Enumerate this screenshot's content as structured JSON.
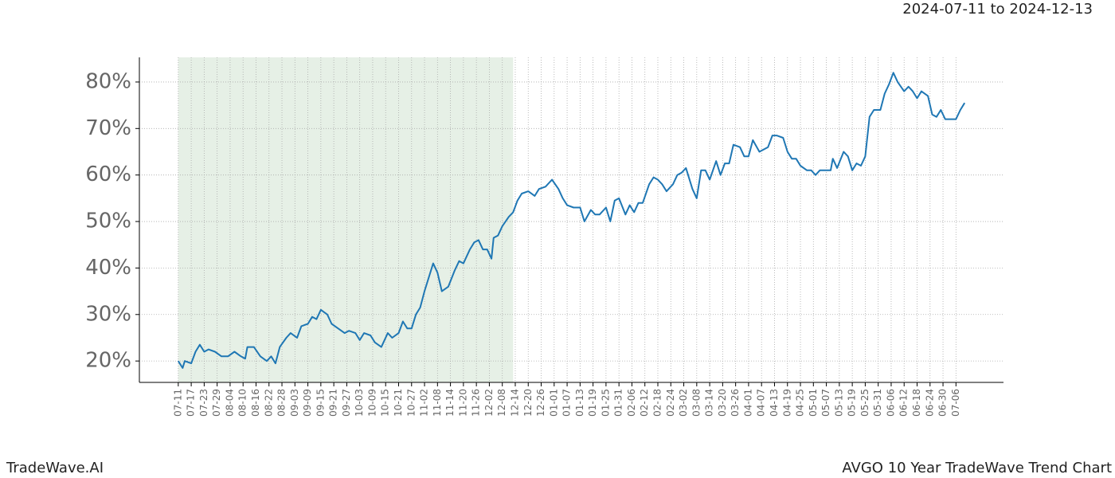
{
  "chart_data": {
    "type": "line",
    "header": "2024-07-11 to 2024-12-13",
    "footer_left": "TradeWave.AI",
    "footer_right": "AVGO 10 Year TradeWave Trend Chart",
    "highlight_x": [
      0,
      155
    ],
    "highlight_color": "#e6f0e6",
    "grid": true,
    "xlim": [
      -18,
      382
    ],
    "ylim": [
      15.4,
      85.3
    ],
    "yticks": [
      {
        "value": 20,
        "label": "20%"
      },
      {
        "value": 30,
        "label": "30%"
      },
      {
        "value": 40,
        "label": "40%"
      },
      {
        "value": 50,
        "label": "50%"
      },
      {
        "value": 60,
        "label": "60%"
      },
      {
        "value": 70,
        "label": "70%"
      },
      {
        "value": 80,
        "label": "80%"
      }
    ],
    "xticks": [
      {
        "value": 0,
        "label": "07-11"
      },
      {
        "value": 6,
        "label": "07-17"
      },
      {
        "value": 12,
        "label": "07-23"
      },
      {
        "value": 18,
        "label": "07-29"
      },
      {
        "value": 24,
        "label": "08-04"
      },
      {
        "value": 30,
        "label": "08-10"
      },
      {
        "value": 36,
        "label": "08-16"
      },
      {
        "value": 42,
        "label": "08-22"
      },
      {
        "value": 48,
        "label": "08-28"
      },
      {
        "value": 54,
        "label": "09-03"
      },
      {
        "value": 60,
        "label": "09-09"
      },
      {
        "value": 66,
        "label": "09-15"
      },
      {
        "value": 72,
        "label": "09-21"
      },
      {
        "value": 78,
        "label": "09-27"
      },
      {
        "value": 84,
        "label": "10-03"
      },
      {
        "value": 90,
        "label": "10-09"
      },
      {
        "value": 96,
        "label": "10-15"
      },
      {
        "value": 102,
        "label": "10-21"
      },
      {
        "value": 108,
        "label": "10-27"
      },
      {
        "value": 114,
        "label": "11-02"
      },
      {
        "value": 120,
        "label": "11-08"
      },
      {
        "value": 126,
        "label": "11-14"
      },
      {
        "value": 132,
        "label": "11-20"
      },
      {
        "value": 138,
        "label": "11-26"
      },
      {
        "value": 144,
        "label": "12-02"
      },
      {
        "value": 150,
        "label": "12-08"
      },
      {
        "value": 156,
        "label": "12-14"
      },
      {
        "value": 162,
        "label": "12-20"
      },
      {
        "value": 168,
        "label": "12-26"
      },
      {
        "value": 174,
        "label": "01-01"
      },
      {
        "value": 180,
        "label": "01-07"
      },
      {
        "value": 186,
        "label": "01-13"
      },
      {
        "value": 192,
        "label": "01-19"
      },
      {
        "value": 198,
        "label": "01-25"
      },
      {
        "value": 204,
        "label": "01-31"
      },
      {
        "value": 210,
        "label": "02-06"
      },
      {
        "value": 216,
        "label": "02-12"
      },
      {
        "value": 222,
        "label": "02-18"
      },
      {
        "value": 228,
        "label": "02-24"
      },
      {
        "value": 234,
        "label": "03-02"
      },
      {
        "value": 240,
        "label": "03-08"
      },
      {
        "value": 246,
        "label": "03-14"
      },
      {
        "value": 252,
        "label": "03-20"
      },
      {
        "value": 258,
        "label": "03-26"
      },
      {
        "value": 264,
        "label": "04-01"
      },
      {
        "value": 270,
        "label": "04-07"
      },
      {
        "value": 276,
        "label": "04-13"
      },
      {
        "value": 282,
        "label": "04-19"
      },
      {
        "value": 288,
        "label": "04-25"
      },
      {
        "value": 294,
        "label": "05-01"
      },
      {
        "value": 300,
        "label": "05-07"
      },
      {
        "value": 306,
        "label": "05-13"
      },
      {
        "value": 312,
        "label": "05-19"
      },
      {
        "value": 318,
        "label": "05-25"
      },
      {
        "value": 324,
        "label": "05-31"
      },
      {
        "value": 330,
        "label": "06-06"
      },
      {
        "value": 336,
        "label": "06-12"
      },
      {
        "value": 342,
        "label": "06-18"
      },
      {
        "value": 348,
        "label": "06-24"
      },
      {
        "value": 354,
        "label": "06-30"
      },
      {
        "value": 360,
        "label": "07-06"
      }
    ],
    "x": [
      0,
      2,
      3,
      6,
      8,
      10,
      12,
      14,
      17,
      20,
      23,
      26,
      29,
      31,
      32,
      35,
      38,
      41,
      43,
      45,
      47,
      50,
      52,
      55,
      57,
      60,
      62,
      64,
      66,
      69,
      71,
      74,
      77,
      79,
      82,
      84,
      86,
      89,
      91,
      94,
      97,
      99,
      102,
      104,
      106,
      108,
      110,
      112,
      114,
      118,
      120,
      122,
      125,
      128,
      130,
      132,
      135,
      137,
      139,
      141,
      143,
      145,
      146,
      148,
      150,
      153,
      155,
      157,
      159,
      162,
      165,
      167,
      170,
      173,
      176,
      178,
      180,
      183,
      186,
      188,
      191,
      193,
      195,
      198,
      200,
      202,
      204,
      207,
      209,
      211,
      213,
      215,
      218,
      220,
      222,
      224,
      226,
      229,
      231,
      233,
      235,
      238,
      240,
      242,
      244,
      246,
      249,
      251,
      253,
      255,
      257,
      260,
      262,
      264,
      266,
      269,
      271,
      273,
      275,
      277,
      280,
      282,
      284,
      286,
      288,
      291,
      293,
      295,
      297,
      300,
      302,
      303,
      305,
      308,
      310,
      312,
      314,
      316,
      318,
      320,
      322,
      325,
      327,
      329,
      331,
      333,
      336,
      338,
      340,
      342,
      344,
      347,
      349,
      351,
      353,
      355,
      357,
      360,
      362,
      364
    ],
    "series": [
      {
        "color": "#1f77b4",
        "values": [
          20,
          18.5,
          20,
          19.5,
          22,
          23.5,
          22,
          22.5,
          22,
          21,
          21,
          22,
          21,
          20.5,
          23,
          23,
          21,
          20,
          21,
          19.5,
          23,
          25,
          26,
          25,
          27.5,
          28,
          29.5,
          29,
          31,
          30,
          28,
          27,
          26,
          26.5,
          26,
          24.5,
          26,
          25.5,
          24,
          23,
          26,
          25,
          26,
          28.5,
          27,
          27,
          30,
          31.5,
          35,
          41,
          39,
          35,
          36,
          39.5,
          41.5,
          41,
          44,
          45.5,
          46,
          44,
          44,
          42,
          46.5,
          47,
          49,
          51,
          52,
          54.5,
          56,
          56.5,
          55.5,
          57,
          57.5,
          59,
          57,
          55,
          53.5,
          53,
          53,
          50,
          52.5,
          51.5,
          51.5,
          53,
          50,
          54.5,
          55,
          51.5,
          53.5,
          52,
          54,
          54,
          58,
          59.5,
          59,
          58,
          56.5,
          58,
          60,
          60.5,
          61.5,
          57,
          55,
          61,
          61,
          59,
          63,
          60,
          62.5,
          62.5,
          66.5,
          66,
          64,
          64,
          67.5,
          65,
          65.5,
          66,
          68.5,
          68.5,
          68,
          65,
          63.5,
          63.5,
          62,
          61,
          61,
          60,
          61,
          61,
          61,
          63.5,
          61.5,
          65,
          64,
          61,
          62.5,
          62,
          64,
          72.5,
          74,
          74,
          77.5,
          79.5,
          82,
          80,
          78,
          79,
          78,
          76.5,
          78,
          77,
          73,
          72.5,
          74,
          72,
          72,
          72,
          74,
          75.5
        ]
      }
    ]
  }
}
